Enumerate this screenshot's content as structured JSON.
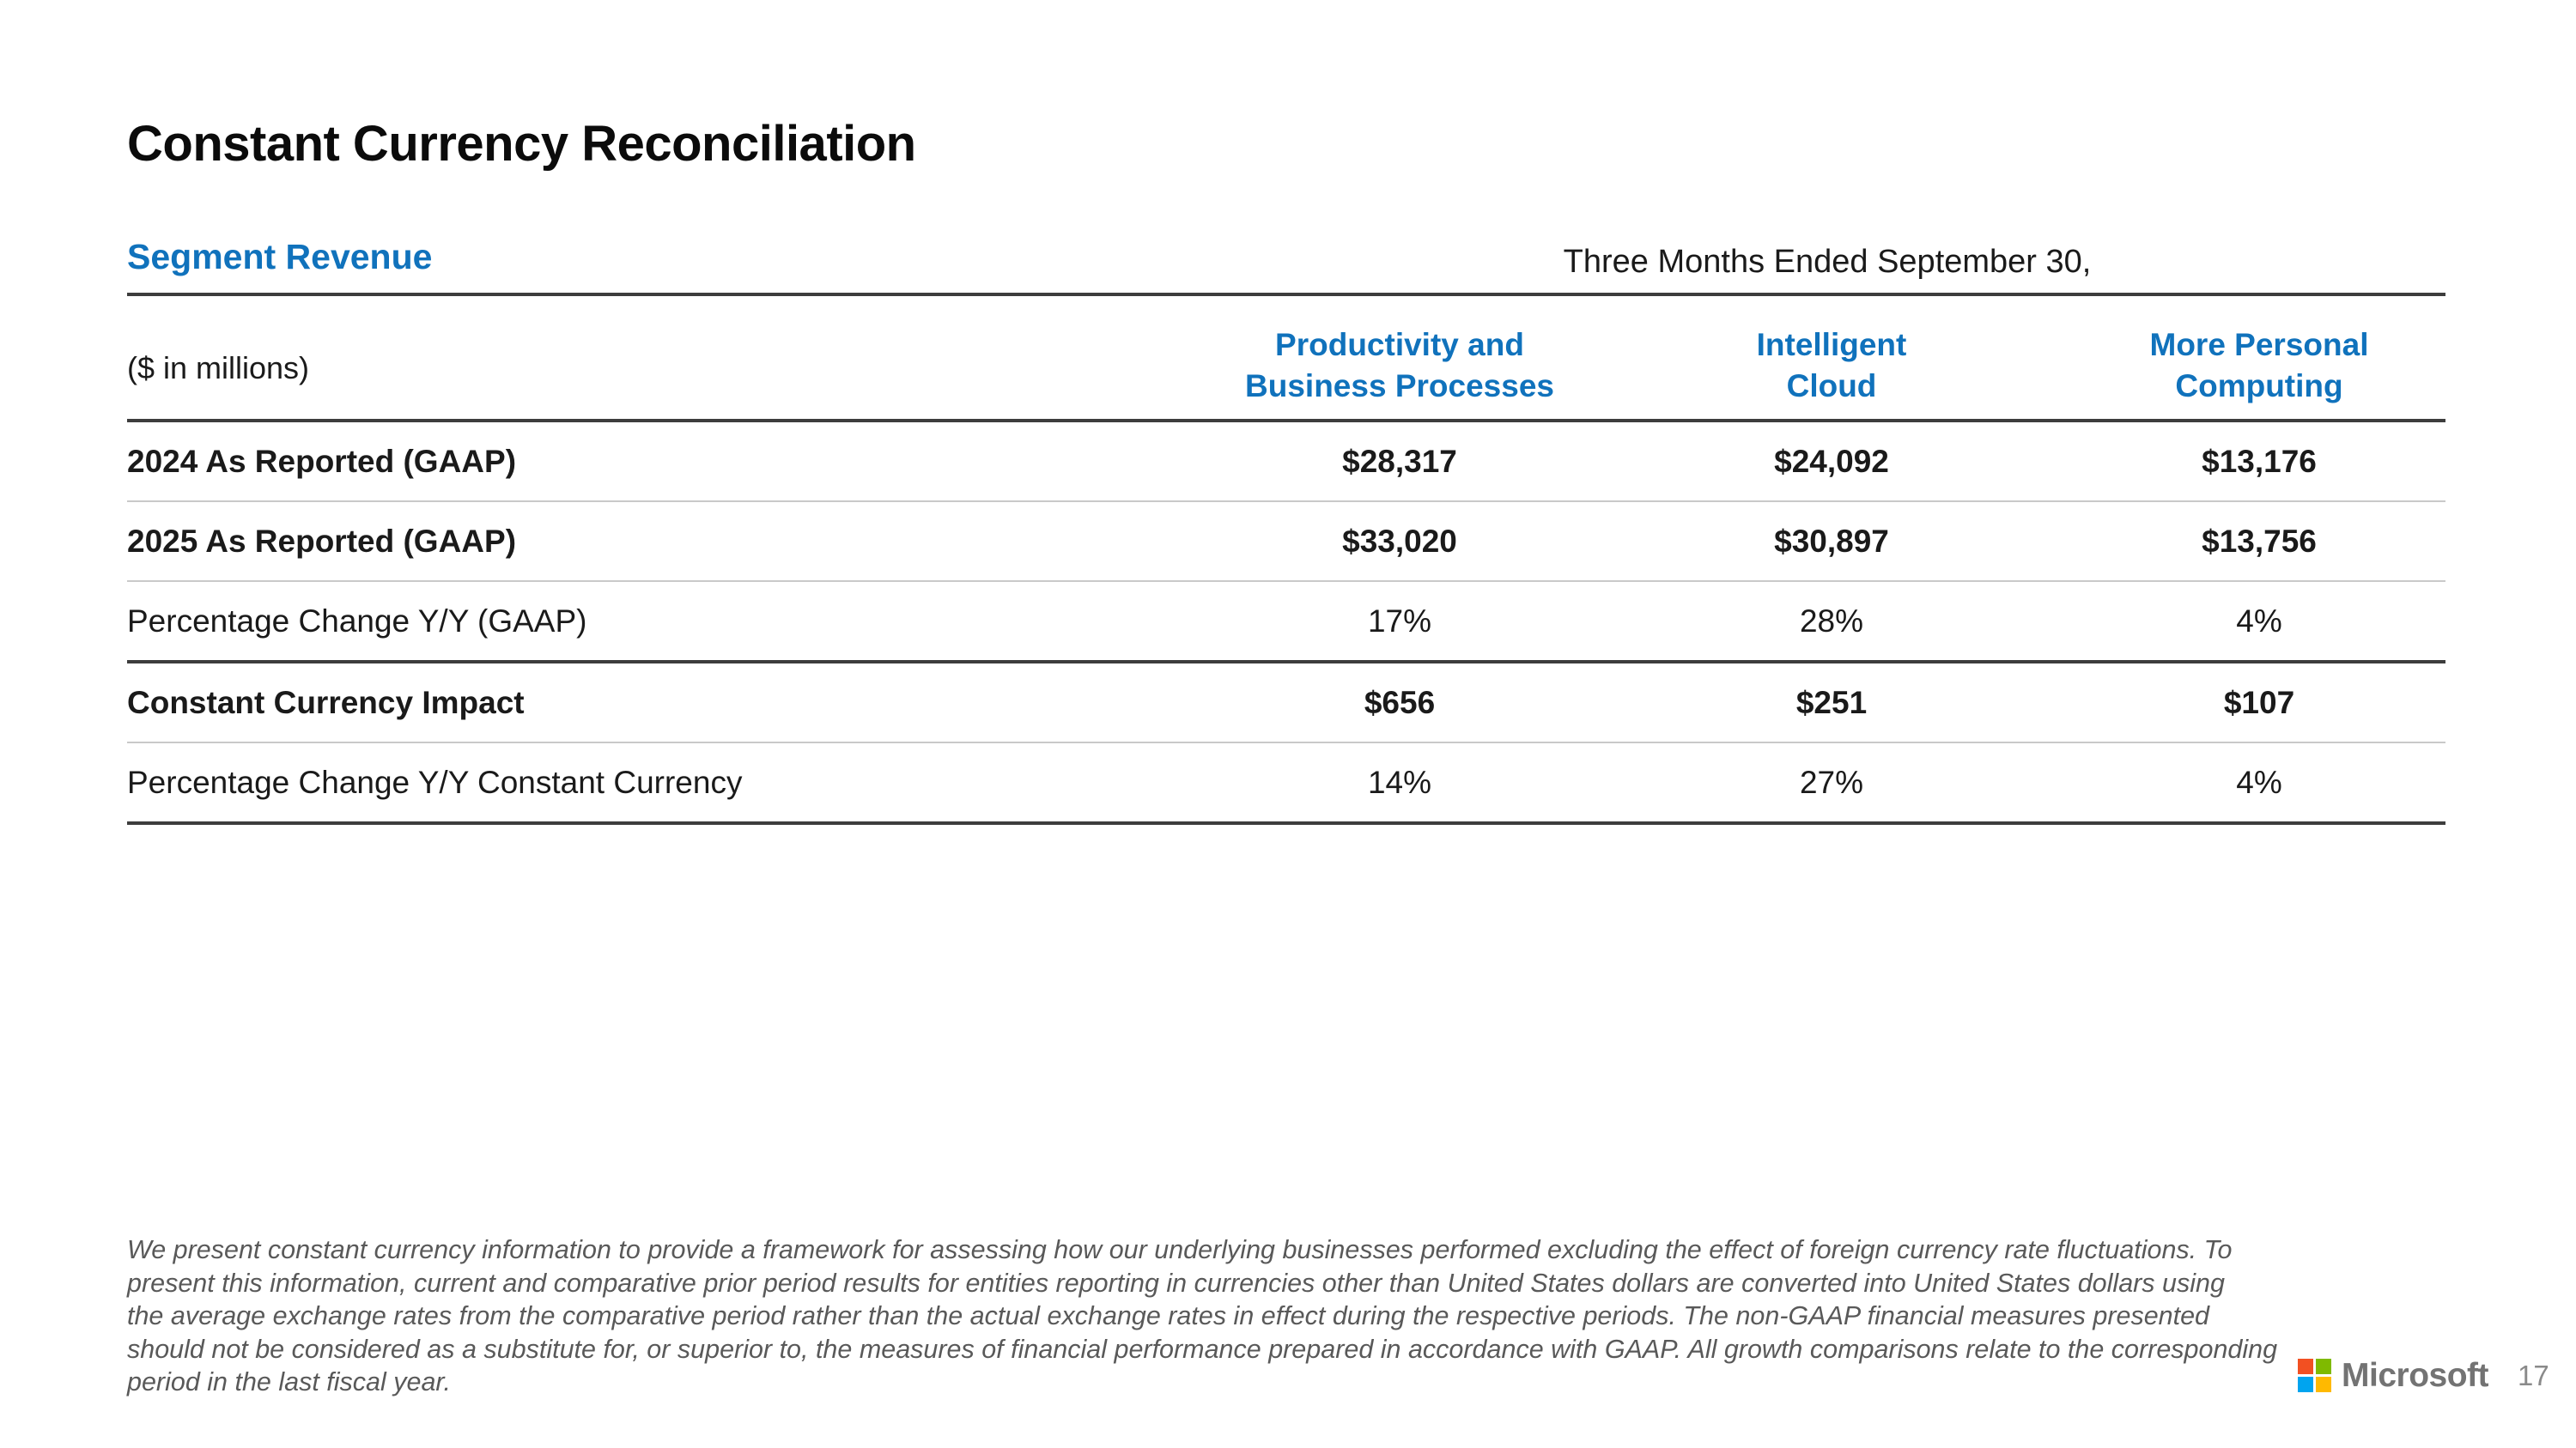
{
  "slide": {
    "title": "Constant Currency Reconciliation",
    "section_heading": "Segment Revenue",
    "page_number": "17"
  },
  "table": {
    "period_label": "Three Months Ended September 30,",
    "units_label": "($ in millions)",
    "columns": [
      "Productivity and\nBusiness Processes",
      "Intelligent\nCloud",
      "More Personal\nComputing"
    ],
    "rows": [
      {
        "label": "2024 As Reported (GAAP)",
        "values": [
          "$28,317",
          "$24,092",
          "$13,176"
        ]
      },
      {
        "label": "2025 As Reported (GAAP)",
        "values": [
          "$33,020",
          "$30,897",
          "$13,756"
        ]
      },
      {
        "label": "Percentage Change Y/Y (GAAP)",
        "values": [
          "17%",
          "28%",
          "4%"
        ]
      },
      {
        "label": "Constant Currency Impact",
        "values": [
          "$656",
          "$251",
          "$107"
        ]
      },
      {
        "label": "Percentage Change Y/Y Constant Currency",
        "values": [
          "14%",
          "27%",
          "4%"
        ]
      }
    ]
  },
  "footnote": {
    "lines": [
      "We present constant currency information to provide a framework for assessing how our underlying businesses performed excluding the effect of foreign currency rate fluctuations. To",
      "present this information, current and comparative prior period results for entities reporting in currencies other than United States dollars are converted into United States dollars using",
      "the average exchange rates from the comparative period rather than the actual exchange rates in effect during the respective periods. The non-GAAP financial measures presented",
      "should not be considered as a substitute for, or superior to, the measures of financial performance prepared in accordance with GAAP. All growth comparisons relate to the corresponding",
      "period in the last fiscal year."
    ]
  },
  "branding": {
    "wordmark": "Microsoft",
    "logo_colors": {
      "top_left": "#F25022",
      "top_right": "#7FBA00",
      "bottom_left": "#00A4EF",
      "bottom_right": "#FFB900"
    }
  },
  "colors": {
    "accent_blue": "#1072BC",
    "rule_dark": "#3D3D3D",
    "rule_light": "#C9C9C9",
    "footnote_gray": "#595959"
  }
}
